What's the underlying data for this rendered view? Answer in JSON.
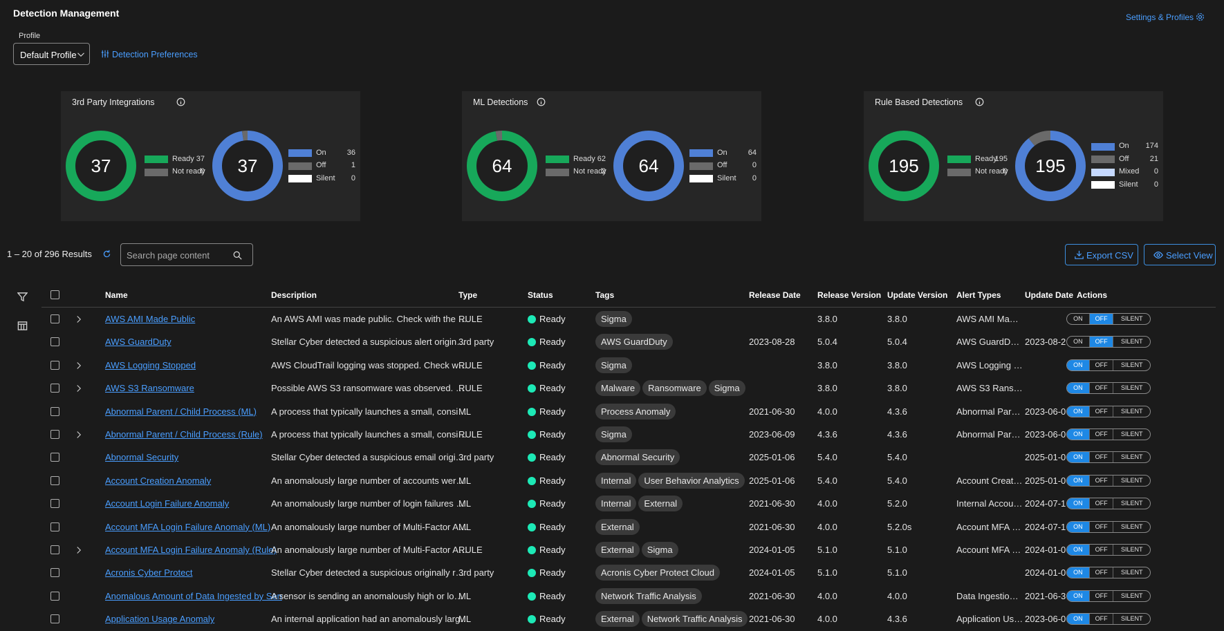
{
  "header": {
    "title": "Detection Management",
    "settings_link": "Settings & Profiles"
  },
  "profile": {
    "label": "Profile",
    "selected": "Default Profile",
    "preferences_link": "Detection Preferences"
  },
  "panels": [
    {
      "title": "3rd Party Integrations",
      "charts": [
        {
          "type": "donut",
          "total": 37,
          "categories": [
            "Ready",
            "Not ready"
          ],
          "values": [
            37,
            0
          ],
          "colors": [
            "#17a85a",
            "#6a6a6a"
          ]
        },
        {
          "type": "donut",
          "total": 37,
          "categories": [
            "On",
            "Off",
            "Silent"
          ],
          "values": [
            36,
            1,
            0
          ],
          "colors": [
            "#4f80d6",
            "#6a6a6a",
            "#ffffff"
          ]
        }
      ]
    },
    {
      "title": "ML Detections",
      "charts": [
        {
          "type": "donut",
          "total": 64,
          "categories": [
            "Ready",
            "Not ready"
          ],
          "values": [
            62,
            2
          ],
          "colors": [
            "#17a85a",
            "#6a6a6a"
          ]
        },
        {
          "type": "donut",
          "total": 64,
          "categories": [
            "On",
            "Off",
            "Silent"
          ],
          "values": [
            64,
            0,
            0
          ],
          "colors": [
            "#4f80d6",
            "#6a6a6a",
            "#ffffff"
          ]
        }
      ]
    },
    {
      "title": "Rule Based Detections",
      "charts": [
        {
          "type": "donut",
          "total": 195,
          "categories": [
            "Ready",
            "Not ready"
          ],
          "values": [
            195,
            0
          ],
          "colors": [
            "#17a85a",
            "#6a6a6a"
          ]
        },
        {
          "type": "donut",
          "total": 195,
          "categories": [
            "On",
            "Off",
            "Mixed",
            "Silent"
          ],
          "values": [
            174,
            21,
            0,
            0
          ],
          "colors": [
            "#4f80d6",
            "#6a6a6a",
            "#c6d9ff",
            "#ffffff"
          ]
        }
      ]
    }
  ],
  "toolbar": {
    "results": "1 – 20 of 296 Results",
    "search_placeholder": "Search page content",
    "export_button": "Export CSV",
    "view_button": "Select View"
  },
  "table": {
    "columns": [
      "Name",
      "Description",
      "Type",
      "Status",
      "Tags",
      "Release Date",
      "Release Version",
      "Update Version",
      "Alert Types",
      "Update Date",
      "Actions"
    ],
    "toggle_labels": [
      "ON",
      "OFF",
      "SILENT"
    ],
    "rows": [
      {
        "expandable": true,
        "toggle": "off",
        "name": "AWS AMI Made Public",
        "description": "An AWS AMI was made public. Check with the …",
        "type": "RULE",
        "status": "Ready",
        "tags": [
          "Sigma"
        ],
        "release_version": "3.8.0",
        "update_version": "3.8.0",
        "alert_types": "AWS AMI Ma…"
      },
      {
        "expandable": false,
        "toggle": "off",
        "name": "AWS GuardDuty",
        "description": "Stellar Cyber detected a suspicious alert origin…",
        "type": "3rd party",
        "status": "Ready",
        "tags": [
          "AWS GuardDuty"
        ],
        "release_date": "2023-08-28",
        "release_version": "5.0.4",
        "update_version": "5.0.4",
        "alert_types": "AWS GuardD…",
        "update_date": "2023-08-2"
      },
      {
        "expandable": true,
        "toggle": "on",
        "name": "AWS Logging Stopped",
        "description": "AWS CloudTrail logging was stopped. Check w…",
        "type": "RULE",
        "status": "Ready",
        "tags": [
          "Sigma"
        ],
        "release_version": "3.8.0",
        "update_version": "3.8.0",
        "alert_types": "AWS Logging …"
      },
      {
        "expandable": true,
        "toggle": "on",
        "name": "AWS S3 Ransomware",
        "description": "Possible AWS S3 ransomware was observed. …",
        "type": "RULE",
        "status": "Ready",
        "tags": [
          "Malware",
          "Ransomware",
          "Sigma"
        ],
        "release_version": "3.8.0",
        "update_version": "3.8.0",
        "alert_types": "AWS S3 Rans…"
      },
      {
        "expandable": false,
        "toggle": "on",
        "name": "Abnormal Parent / Child Process (ML)",
        "description": "A process that typically launches a small, consi…",
        "type": "ML",
        "status": "Ready",
        "tags": [
          "Process Anomaly"
        ],
        "release_date": "2021-06-30",
        "release_version": "4.0.0",
        "update_version": "4.3.6",
        "alert_types": "Abnormal Par…",
        "update_date": "2023-06-0"
      },
      {
        "expandable": true,
        "toggle": "on",
        "name": "Abnormal Parent / Child Process (Rule)",
        "description": "A process that typically launches a small, consi…",
        "type": "RULE",
        "status": "Ready",
        "tags": [
          "Sigma"
        ],
        "release_date": "2023-06-09",
        "release_version": "4.3.6",
        "update_version": "4.3.6",
        "alert_types": "Abnormal Par…",
        "update_date": "2023-06-0"
      },
      {
        "expandable": false,
        "toggle": "on",
        "name": "Abnormal Security",
        "description": "Stellar Cyber detected a suspicious email origi…",
        "type": "3rd party",
        "status": "Ready",
        "tags": [
          "Abnormal Security"
        ],
        "release_date": "2025-01-06",
        "release_version": "5.4.0",
        "update_version": "5.4.0",
        "update_date": "2025-01-0"
      },
      {
        "expandable": false,
        "toggle": "on",
        "name": "Account Creation Anomaly",
        "description": "An anomalously large number of accounts wer…",
        "type": "ML",
        "status": "Ready",
        "tags": [
          "Internal",
          "User Behavior Analytics"
        ],
        "release_date": "2025-01-06",
        "release_version": "5.4.0",
        "update_version": "5.4.0",
        "alert_types": "Account Creat…",
        "update_date": "2025-01-0"
      },
      {
        "expandable": false,
        "toggle": "on",
        "name": "Account Login Failure Anomaly",
        "description": "An anomalously large number of login failures …",
        "type": "ML",
        "status": "Ready",
        "tags": [
          "Internal",
          "External"
        ],
        "release_date": "2021-06-30",
        "release_version": "4.0.0",
        "update_version": "5.2.0",
        "alert_types": "Internal Accou…",
        "update_date": "2024-07-1"
      },
      {
        "expandable": false,
        "toggle": "on",
        "name": "Account MFA Login Failure Anomaly (ML)",
        "description": "An anomalously large number of Multi-Factor A…",
        "type": "ML",
        "status": "Ready",
        "tags": [
          "External"
        ],
        "release_date": "2021-06-30",
        "release_version": "4.0.0",
        "update_version": "5.2.0s",
        "alert_types": "Account MFA …",
        "update_date": "2024-07-1"
      },
      {
        "expandable": true,
        "toggle": "on",
        "name": "Account MFA Login Failure Anomaly (Rule)",
        "description": "An anomalously large number of Multi-Factor A…",
        "type": "RULE",
        "status": "Ready",
        "tags": [
          "External",
          "Sigma"
        ],
        "release_date": "2024-01-05",
        "release_version": "5.1.0",
        "update_version": "5.1.0",
        "alert_types": "Account MFA …",
        "update_date": "2024-01-0"
      },
      {
        "expandable": false,
        "toggle": "on",
        "name": "Acronis Cyber Protect",
        "description": "Stellar Cyber detected a suspicious originally r…",
        "type": "3rd party",
        "status": "Ready",
        "tags": [
          "Acronis Cyber Protect Cloud"
        ],
        "release_date": "2024-01-05",
        "release_version": "5.1.0",
        "update_version": "5.1.0",
        "update_date": "2024-01-0"
      },
      {
        "expandable": false,
        "toggle": "on",
        "name": "Anomalous Amount of Data Ingested by Sen",
        "description": "A sensor is sending an anomalously high or lo…",
        "type": "ML",
        "status": "Ready",
        "tags": [
          "Network Traffic Analysis"
        ],
        "release_date": "2021-06-30",
        "release_version": "4.0.0",
        "update_version": "4.0.0",
        "alert_types": "Data Ingestio…",
        "update_date": "2021-06-3"
      },
      {
        "expandable": false,
        "toggle": "on",
        "name": "Application Usage Anomaly",
        "description": "An internal application had an anomalously larg…",
        "type": "ML",
        "status": "Ready",
        "tags": [
          "External",
          "Network Traffic Analysis"
        ],
        "release_date": "2021-06-30",
        "release_version": "4.0.0",
        "update_version": "4.3.6",
        "alert_types": "Application Us…",
        "update_date": "2023-06-0"
      }
    ]
  }
}
